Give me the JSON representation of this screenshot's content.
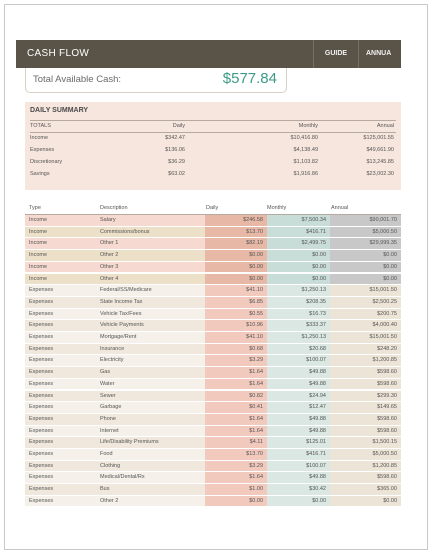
{
  "header": {
    "title": "CASH FLOW",
    "buttons": [
      {
        "label": "GUIDE"
      },
      {
        "label": "ANNUA"
      }
    ]
  },
  "available_cash": {
    "label": "Total Available Cash:",
    "value": "$577.84"
  },
  "daily_summary": {
    "heading": "DAILY SUMMARY",
    "columns": [
      "TOTALS",
      "Daily",
      "Monthly",
      "Annual"
    ],
    "rows": [
      [
        "Income",
        "$342.47",
        "$10,416.80",
        "$125,001.55"
      ],
      [
        "Expenses",
        "$136.06",
        "$4,138.49",
        "$49,661.90"
      ],
      [
        "Discretionary",
        "$36.29",
        "$1,103.82",
        "$13,245.85"
      ],
      [
        "Savings",
        "$63.02",
        "$1,916.86",
        "$23,002.30"
      ]
    ]
  },
  "detail": {
    "columns": [
      "Type",
      "Description",
      "Daily",
      "Monthly",
      "Annual"
    ],
    "rows": [
      {
        "type": "Income",
        "desc": "Salary",
        "daily": "$246.58",
        "monthly": "$7,500.34",
        "annual": "$90,001.70"
      },
      {
        "type": "Income",
        "desc": "Commissions/bonus",
        "daily": "$13.70",
        "monthly": "$416.71",
        "annual": "$5,000.50"
      },
      {
        "type": "Income",
        "desc": "Other 1",
        "daily": "$82.19",
        "monthly": "$2,499.75",
        "annual": "$29,999.35"
      },
      {
        "type": "Income",
        "desc": "Other 2",
        "daily": "$0.00",
        "monthly": "$0.00",
        "annual": "$0.00"
      },
      {
        "type": "Income",
        "desc": "Other 3",
        "daily": "$0.00",
        "monthly": "$0.00",
        "annual": "$0.00"
      },
      {
        "type": "Income",
        "desc": "Other 4",
        "daily": "$0.00",
        "monthly": "$0.00",
        "annual": "$0.00"
      },
      {
        "type": "Expenses",
        "desc": "Federal/SS/Medicare",
        "daily": "$41.10",
        "monthly": "$1,250.13",
        "annual": "$15,001.50"
      },
      {
        "type": "Expenses",
        "desc": "State Income Tax",
        "daily": "$6.85",
        "monthly": "$208.35",
        "annual": "$2,500.25"
      },
      {
        "type": "Expenses",
        "desc": "Vehicle Tax/Fees",
        "daily": "$0.55",
        "monthly": "$16.73",
        "annual": "$200.75"
      },
      {
        "type": "Expenses",
        "desc": "Vehicle Payments",
        "daily": "$10.96",
        "monthly": "$333.37",
        "annual": "$4,000.40"
      },
      {
        "type": "Expenses",
        "desc": "Mortgage/Rent",
        "daily": "$41.10",
        "monthly": "$1,250.13",
        "annual": "$15,001.50"
      },
      {
        "type": "Expenses",
        "desc": "Insurance",
        "daily": "$0.68",
        "monthly": "$20.68",
        "annual": "$248.20"
      },
      {
        "type": "Expenses",
        "desc": "Electricity",
        "daily": "$3.29",
        "monthly": "$100.07",
        "annual": "$1,200.85"
      },
      {
        "type": "Expenses",
        "desc": "Gas",
        "daily": "$1.64",
        "monthly": "$49.88",
        "annual": "$598.60"
      },
      {
        "type": "Expenses",
        "desc": "Water",
        "daily": "$1.64",
        "monthly": "$49.88",
        "annual": "$598.60"
      },
      {
        "type": "Expenses",
        "desc": "Sewer",
        "daily": "$0.82",
        "monthly": "$24.94",
        "annual": "$299.30"
      },
      {
        "type": "Expenses",
        "desc": "Garbage",
        "daily": "$0.41",
        "monthly": "$12.47",
        "annual": "$149.65"
      },
      {
        "type": "Expenses",
        "desc": "Phone",
        "daily": "$1.64",
        "monthly": "$49.88",
        "annual": "$598.60"
      },
      {
        "type": "Expenses",
        "desc": "Internet",
        "daily": "$1.64",
        "monthly": "$49.88",
        "annual": "$598.60"
      },
      {
        "type": "Expenses",
        "desc": "Life/Disability Premiums",
        "daily": "$4.11",
        "monthly": "$125.01",
        "annual": "$1,500.15"
      },
      {
        "type": "Expenses",
        "desc": "Food",
        "daily": "$13.70",
        "monthly": "$416.71",
        "annual": "$5,000.50"
      },
      {
        "type": "Expenses",
        "desc": "Clothing",
        "daily": "$3.29",
        "monthly": "$100.07",
        "annual": "$1,200.85"
      },
      {
        "type": "Expenses",
        "desc": "Medical/Dental/Rx",
        "daily": "$1.64",
        "monthly": "$49.88",
        "annual": "$598.60"
      },
      {
        "type": "Expenses",
        "desc": "Bus",
        "daily": "$1.00",
        "monthly": "$30.42",
        "annual": "$365.00"
      },
      {
        "type": "Expenses",
        "desc": "Other 2",
        "daily": "$0.00",
        "monthly": "$0.00",
        "annual": "$0.00"
      }
    ]
  },
  "colors": {
    "header_bg": "#595348",
    "cash_value": "#3e9a86",
    "summary_bg": "#f7e6de",
    "income_row": "#f6d9d0",
    "income_row_alt": "#ede0c8",
    "income_daily": "#e8b8a6",
    "income_monthly": "#c9ddd8",
    "income_annual": "#c8c8c8",
    "expense_row": "#f5f1ea",
    "expense_row_alt": "#f0e8dc",
    "expense_daily": "#f2c9bd",
    "expense_monthly": "#dae7e2",
    "expense_annual": "#ece4d6"
  }
}
